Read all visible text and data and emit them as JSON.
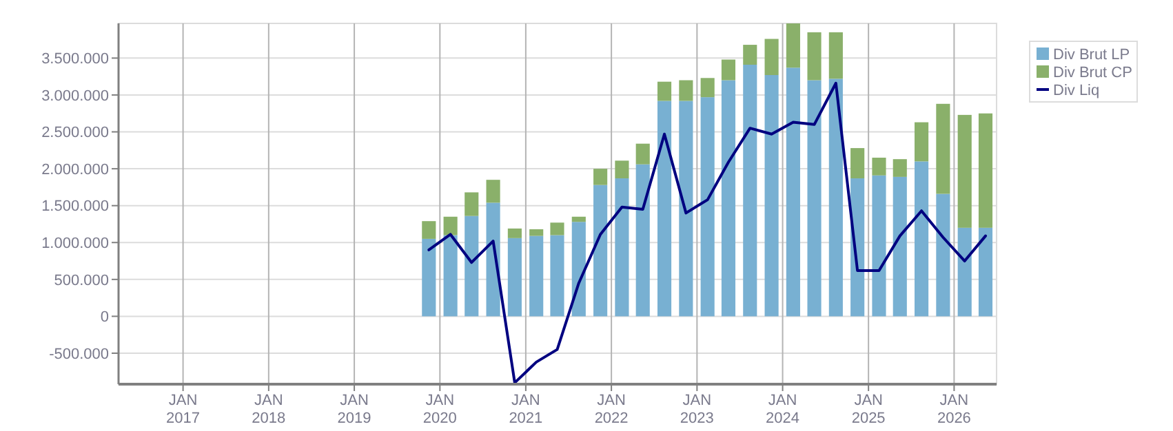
{
  "chart_data": {
    "type": "bar",
    "stacked": true,
    "x": [
      "2019-11-15",
      "2020-02-15",
      "2020-05-15",
      "2020-08-15",
      "2020-11-15",
      "2021-02-15",
      "2021-05-15",
      "2021-08-15",
      "2021-11-15",
      "2022-02-15",
      "2022-05-15",
      "2022-08-15",
      "2022-11-15",
      "2023-02-15",
      "2023-05-15",
      "2023-08-15",
      "2023-11-15",
      "2024-02-15",
      "2024-05-15",
      "2024-08-15",
      "2024-11-15",
      "2025-02-15",
      "2025-05-15",
      "2025-08-15",
      "2025-11-15",
      "2026-02-15",
      "2026-05-15"
    ],
    "series": [
      {
        "name": "Div Brut LP",
        "color": "#78b0d2",
        "values": [
          1050000,
          1100000,
          1360000,
          1540000,
          1060000,
          1090000,
          1100000,
          1280000,
          1780000,
          1870000,
          2060000,
          2920000,
          2920000,
          2970000,
          3200000,
          3410000,
          3270000,
          3370000,
          3200000,
          3220000,
          1870000,
          1910000,
          1890000,
          2100000,
          1660000,
          1200000,
          1200000
        ]
      },
      {
        "name": "Div Brut CP",
        "color": "#8ab06a",
        "values": [
          240000,
          250000,
          320000,
          310000,
          130000,
          90000,
          170000,
          70000,
          220000,
          240000,
          280000,
          260000,
          280000,
          260000,
          280000,
          270000,
          490000,
          600000,
          650000,
          630000,
          410000,
          240000,
          240000,
          530000,
          1220000,
          1530000,
          1550000
        ]
      },
      {
        "name": "Div Liq",
        "type": "line",
        "color": "#000080",
        "values": [
          900000,
          1110000,
          730000,
          1020000,
          -900000,
          -620000,
          -450000,
          450000,
          1110000,
          1480000,
          1450000,
          2470000,
          1400000,
          1580000,
          2090000,
          2550000,
          2470000,
          2630000,
          2600000,
          3160000,
          620000,
          620000,
          1090000,
          1430000,
          1070000,
          750000,
          1090000
        ]
      }
    ],
    "xlim": [
      "2016-04-01",
      "2026-07-01"
    ],
    "xticks": [
      {
        "value": "2017-01-01",
        "label": "JAN\n2017"
      },
      {
        "value": "2018-01-01",
        "label": "JAN\n2018"
      },
      {
        "value": "2019-01-01",
        "label": "JAN\n2019"
      },
      {
        "value": "2020-01-01",
        "label": "JAN\n2020"
      },
      {
        "value": "2021-01-01",
        "label": "JAN\n2021"
      },
      {
        "value": "2022-01-01",
        "label": "JAN\n2022"
      },
      {
        "value": "2023-01-01",
        "label": "JAN\n2023"
      },
      {
        "value": "2024-01-01",
        "label": "JAN\n2024"
      },
      {
        "value": "2025-01-01",
        "label": "JAN\n2025"
      },
      {
        "value": "2026-01-01",
        "label": "JAN\n2026"
      }
    ],
    "ylim": [
      -920000,
      3970000
    ],
    "yticks": [
      {
        "value": -500000,
        "label": "-500.000"
      },
      0,
      {
        "value": 500000,
        "label": "500.000"
      },
      {
        "value": 1000000,
        "label": "1.000.000"
      },
      {
        "value": 1500000,
        "label": "1.500.000"
      },
      {
        "value": 2000000,
        "label": "2.000.000"
      },
      {
        "value": 2500000,
        "label": "2.500.000"
      },
      {
        "value": 3000000,
        "label": "3.000.000"
      },
      {
        "value": 3500000,
        "label": "3.500.000"
      }
    ],
    "grid": true,
    "legend": "top right"
  }
}
